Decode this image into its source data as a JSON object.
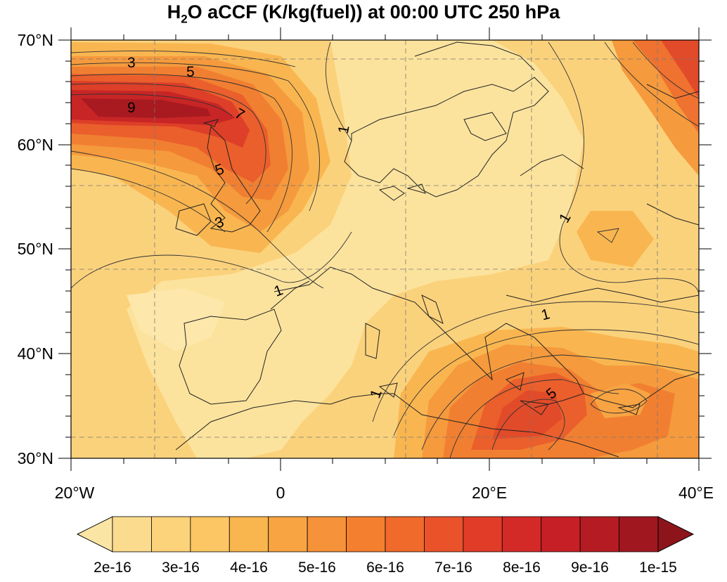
{
  "title": {
    "main": "H",
    "sub": "2",
    "rest": "O aCCF (K/kg(fuel)) at 00:00 UTC 250 hPa"
  },
  "lat_labels": [
    "70°N",
    "60°N",
    "50°N",
    "40°N",
    "30°N"
  ],
  "lon_labels": [
    "20°W",
    "0",
    "20°E",
    "40°E"
  ],
  "contour_labels": {
    "c3a": "3",
    "c5a": "5",
    "c9": "9",
    "c7": "7",
    "c5b": "5",
    "c3b": "3",
    "c1a": "1",
    "c1b": "1",
    "c1c": "1",
    "c1d": "1",
    "c1e": "1",
    "c5c": "5"
  },
  "colorbar": {
    "labels": [
      "2e-16",
      "3e-16",
      "4e-16",
      "5e-16",
      "6e-16",
      "7e-16",
      "8e-16",
      "9e-16",
      "1e-15"
    ],
    "colors": [
      "#fbe5a4",
      "#fbdc8e",
      "#fcd27a",
      "#fbc663",
      "#f9b54e",
      "#f8a443",
      "#f69239",
      "#f4802f",
      "#f06a2b",
      "#ea5329",
      "#e03c28",
      "#d42a27",
      "#c61f25",
      "#b51b22",
      "#a0171f",
      "#8e141c"
    ]
  },
  "map_extent": {
    "lon": [
      -20,
      40
    ],
    "lat": [
      30,
      70
    ]
  }
}
